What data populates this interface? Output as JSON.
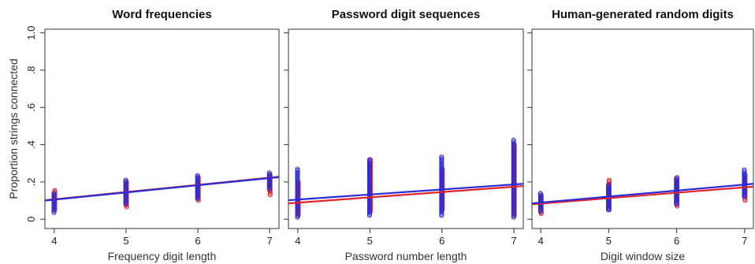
{
  "ylabel": "Proportion strings connected",
  "ytick_labels": [
    "0",
    ".2",
    ".4",
    ".6",
    ".8",
    "1.0"
  ],
  "colors": {
    "red": "#e0242a",
    "blue": "#2a2ad6"
  },
  "chart_data": [
    {
      "type": "scatter",
      "title": "Word frequencies",
      "xlabel": "Frequency digit length",
      "xticks": [
        4,
        5,
        6,
        7
      ],
      "xlim": [
        3.87,
        7.13
      ],
      "ylim": [
        -0.05,
        1.02
      ],
      "show_yaxis": true,
      "points": {
        "blue": [
          {
            "x": 4,
            "ymin": 0.035,
            "ymax": 0.14
          },
          {
            "x": 5,
            "ymin": 0.08,
            "ymax": 0.21
          },
          {
            "x": 6,
            "ymin": 0.11,
            "ymax": 0.235
          },
          {
            "x": 7,
            "ymin": 0.16,
            "ymax": 0.25
          }
        ],
        "red": [
          {
            "x": 4,
            "ymin": 0.05,
            "ymax": 0.155
          },
          {
            "x": 5,
            "ymin": 0.065,
            "ymax": 0.2
          },
          {
            "x": 6,
            "ymin": 0.1,
            "ymax": 0.225
          },
          {
            "x": 7,
            "ymin": 0.13,
            "ymax": 0.24
          }
        ]
      },
      "fits": {
        "red": {
          "x": [
            3.87,
            7.13
          ],
          "y": [
            0.102,
            0.228
          ]
        },
        "blue": {
          "x": [
            3.87,
            7.13
          ],
          "y": [
            0.1,
            0.226
          ]
        }
      }
    },
    {
      "type": "scatter",
      "title": "Password digit sequences",
      "xlabel": "Password number length",
      "xticks": [
        4,
        5,
        6,
        7
      ],
      "xlim": [
        3.87,
        7.13
      ],
      "ylim": [
        -0.05,
        1.02
      ],
      "show_yaxis": false,
      "points": {
        "blue": [
          {
            "x": 4,
            "ymin": 0.01,
            "ymax": 0.27
          },
          {
            "x": 5,
            "ymin": 0.02,
            "ymax": 0.32
          },
          {
            "x": 6,
            "ymin": 0.02,
            "ymax": 0.335
          },
          {
            "x": 7,
            "ymin": 0.01,
            "ymax": 0.425
          }
        ],
        "red": [
          {
            "x": 4,
            "ymin": 0.02,
            "ymax": 0.2
          },
          {
            "x": 5,
            "ymin": 0.04,
            "ymax": 0.32
          },
          {
            "x": 6,
            "ymin": 0.05,
            "ymax": 0.27
          },
          {
            "x": 7,
            "ymin": 0.02,
            "ymax": 0.4
          }
        ]
      },
      "fits": {
        "red": {
          "x": [
            3.87,
            7.13
          ],
          "y": [
            0.085,
            0.178
          ]
        },
        "blue": {
          "x": [
            3.87,
            7.13
          ],
          "y": [
            0.102,
            0.19
          ]
        }
      }
    },
    {
      "type": "scatter",
      "title": "Human-generated random digits",
      "xlabel": "Digit window size",
      "xticks": [
        4,
        5,
        6,
        7
      ],
      "xlim": [
        3.87,
        7.13
      ],
      "ylim": [
        -0.05,
        1.02
      ],
      "show_yaxis": false,
      "points": {
        "blue": [
          {
            "x": 4,
            "ymin": 0.04,
            "ymax": 0.14
          },
          {
            "x": 5,
            "ymin": 0.05,
            "ymax": 0.185
          },
          {
            "x": 6,
            "ymin": 0.08,
            "ymax": 0.22
          },
          {
            "x": 7,
            "ymin": 0.12,
            "ymax": 0.265
          }
        ],
        "red": [
          {
            "x": 4,
            "ymin": 0.03,
            "ymax": 0.13
          },
          {
            "x": 5,
            "ymin": 0.05,
            "ymax": 0.21
          },
          {
            "x": 6,
            "ymin": 0.07,
            "ymax": 0.225
          },
          {
            "x": 7,
            "ymin": 0.1,
            "ymax": 0.24
          }
        ]
      },
      "fits": {
        "red": {
          "x": [
            3.87,
            7.13
          ],
          "y": [
            0.08,
            0.175
          ]
        },
        "blue": {
          "x": [
            3.87,
            7.13
          ],
          "y": [
            0.085,
            0.19
          ]
        }
      }
    }
  ]
}
